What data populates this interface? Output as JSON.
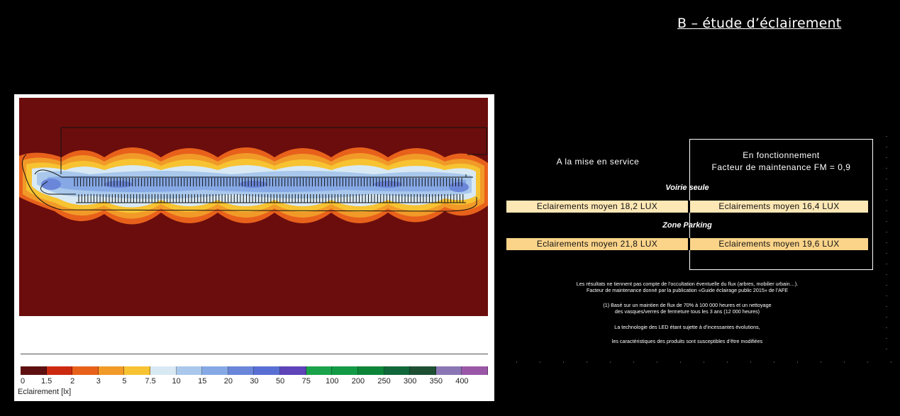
{
  "slide": {
    "title": "B – étude d’éclairement"
  },
  "figure": {
    "legend": {
      "title": "Eclairement [lx]",
      "colors": [
        "#5e1010",
        "#cc2a10",
        "#e8611b",
        "#f19a28",
        "#f7c332",
        "#d8e9f4",
        "#a9c8ec",
        "#86a9e6",
        "#6a86d9",
        "#5a6fd4",
        "#5e43b9",
        "#1aa34a",
        "#129a44",
        "#0c8538",
        "#10683a",
        "#1e4f33",
        "#8a76b4",
        "#9b57a7"
      ],
      "ticks": [
        "0",
        "1.5",
        "2",
        "3",
        "5",
        "7.5",
        "10",
        "15",
        "20",
        "30",
        "50",
        "75",
        "100",
        "200",
        "250",
        "300",
        "350",
        "400"
      ]
    }
  },
  "table": {
    "col_left": "A la mise en service",
    "col_right_line1": "En fonctionnement",
    "col_right_line2": "Facteur de maintenance FM = 0,9",
    "section1": "Voirie seule",
    "row1_left": "Eclairements moyen 18,2 LUX",
    "row1_right": "Eclairements moyen 16,4 LUX",
    "section2": "Zone Parking",
    "row2_left": "Eclairements moyen 21,8 LUX",
    "row2_right": "Eclairements moyen 19,6 LUX",
    "row1_color": "#fde7b5",
    "row2_color": "#fbd48a"
  },
  "notes": {
    "n1": "Les résultats ne tiennent pas compte de l’occultation éventuelle du flux (arbres, mobilier urbain…).",
    "n2": "Facteur de maintenance donné par la publication «Guide éclairage public 2015» de l’AFE",
    "n3": "(1) Basé sur un maintien de flux de 70% à 100 000 heures et un nettoyage",
    "n4": "des vasques/verres de fermeture tous les 3 ans (12 000 heures)",
    "n5": "La technologie des LED étant sujette à d’incessantes évolutions,",
    "n6": "les caractéristiques des produits sont susceptibles d’être modifiées"
  }
}
